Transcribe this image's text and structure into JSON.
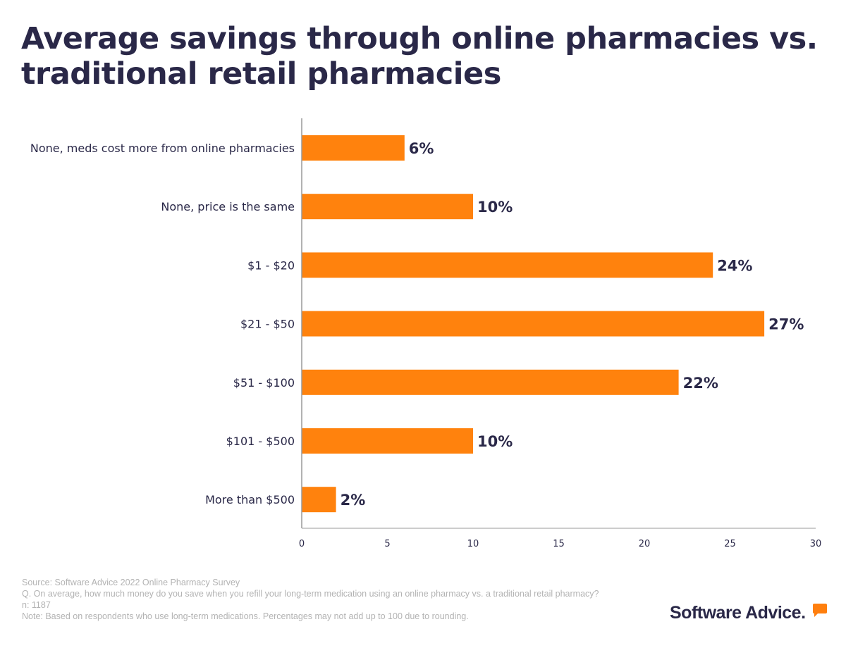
{
  "title": "Average savings through online pharmacies vs. traditional retail pharmacies",
  "chart_data": {
    "type": "bar",
    "orientation": "horizontal",
    "categories": [
      "None, meds cost more from online pharmacies",
      "None, price is the same",
      "$1 - $20",
      "$21 - $50",
      "$51 - $100",
      "$101 - $500",
      "More than $500"
    ],
    "values": [
      6,
      10,
      24,
      27,
      22,
      10,
      2
    ],
    "data_labels": [
      "6%",
      "10%",
      "24%",
      "27%",
      "22%",
      "10%",
      "2%"
    ],
    "xlim": [
      0,
      30
    ],
    "xticks": [
      "0",
      "5",
      "10",
      "15",
      "20",
      "25",
      "30"
    ],
    "grid": false,
    "bar_color": "#ff820d",
    "xlabel": "",
    "ylabel": ""
  },
  "footer": {
    "source": "Source: Software Advice 2022 Online Pharmacy Survey",
    "question": "Q. On average, how much money do you save when you refill your long-term medication using an online pharmacy vs. a traditional retail pharmacy?",
    "n": "n: 1187",
    "note": "Note: Based on respondents who use long-term medications. Percentages may not add up to 100 due to rounding."
  },
  "logo": {
    "text": "Software Advice."
  }
}
